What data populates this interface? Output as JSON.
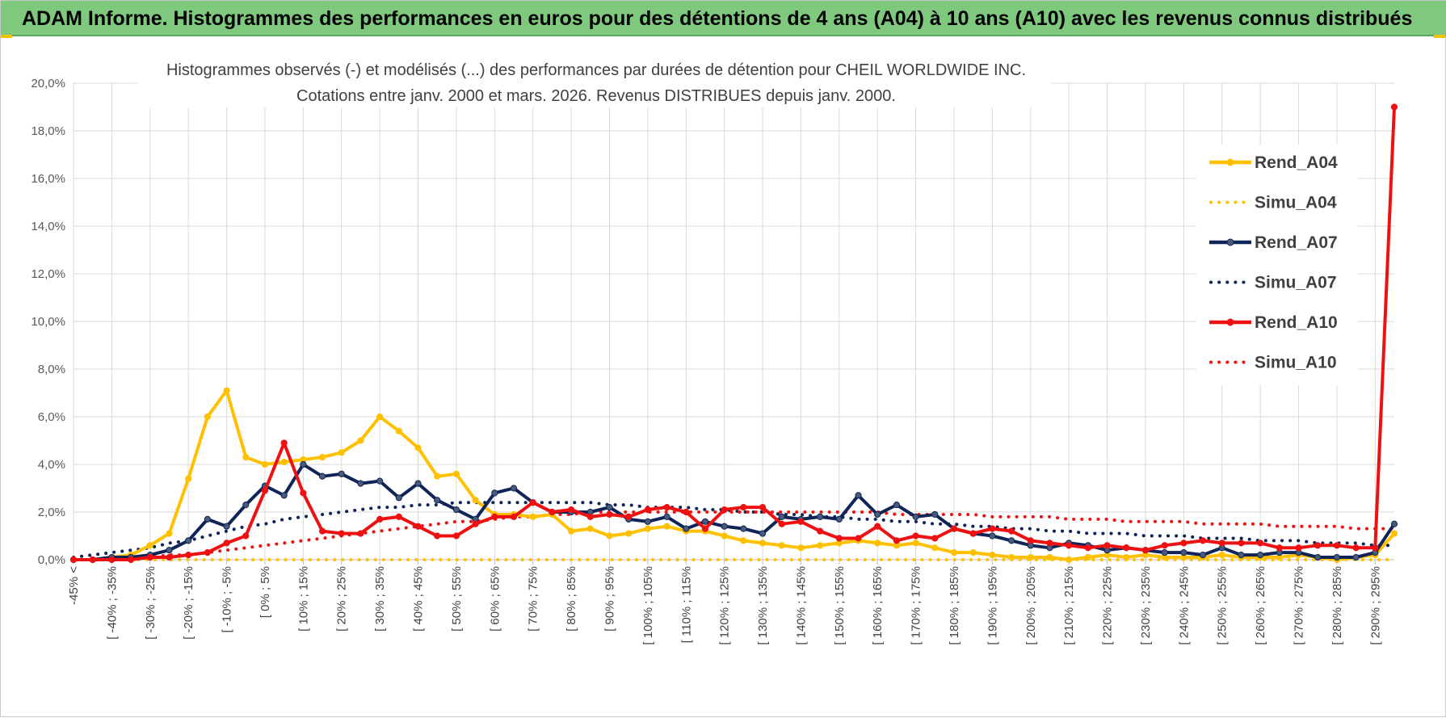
{
  "banner": {
    "title": "ADAM Informe. Histogrammes des performances en euros pour des détentions de 4 ans (A04) à 10 ans (A10) avec les revenus connus distribués"
  },
  "colors": {
    "banner_bg": "#7fc97f",
    "A04": "#ffc000",
    "A07": "#0f2557",
    "A10": "#ee1111",
    "grid": "#d9d9d9"
  },
  "chart_data": {
    "type": "line",
    "title": "Histogrammes observés (-) et modélisés (...) des performances par durées de détention pour CHEIL WORLDWIDE INC.",
    "subtitle": "Cotations entre janv. 2000 et mars. 2026.  Revenus DISTRIBUES depuis janv. 2000.",
    "ylim": [
      0,
      20
    ],
    "y_ticks": [
      "0,0%",
      "2,0%",
      "4,0%",
      "6,0%",
      "8,0%",
      "10,0%",
      "12,0%",
      "14,0%",
      "16,0%",
      "18,0%",
      "20,0%"
    ],
    "grid": true,
    "legend_position": "right",
    "x_tick_labels": [
      "-45% <",
      "[ -40% ; -35%",
      "[ -30% ; -25%",
      "[ -20% ; -15%",
      "[ -10% ; -5%",
      "[ 0% ; 5%",
      "[ 10% ; 15%",
      "[ 20% ; 25%",
      "[ 30% ; 35%",
      "[ 40% ; 45%",
      "[ 50% ; 55%",
      "[ 60% ; 65%",
      "[ 70% ; 75%",
      "[ 80% ; 85%",
      "[ 90% ; 95%",
      "[ 100% ; 105%",
      "[ 110% ; 115%",
      "[ 120% ; 125%",
      "[ 130% ; 135%",
      "[ 140% ; 145%",
      "[ 150% ; 155%",
      "[ 160% ; 165%",
      "[ 170% ; 175%",
      "[ 180% ; 185%",
      "[ 190% ; 195%",
      "[ 200% ; 205%",
      "[ 210% ; 215%",
      "[ 220% ; 225%",
      "[ 230% ; 235%",
      "[ 240% ; 245%",
      "[ 250% ; 255%",
      "[ 260% ; 265%",
      "[ 270% ; 275%",
      "[ 280% ; 285%",
      "[ 290% ; 295%"
    ],
    "n_points": 70,
    "series": [
      {
        "name": "Rend_A04",
        "style": "solid",
        "color": "#ffc000",
        "values": [
          0,
          0,
          0.1,
          0.2,
          0.6,
          1.1,
          3.4,
          6.0,
          7.1,
          4.3,
          4.0,
          4.1,
          4.2,
          4.3,
          4.5,
          5.0,
          6.0,
          5.4,
          4.7,
          3.5,
          3.6,
          2.5,
          1.9,
          1.9,
          1.8,
          1.9,
          1.2,
          1.3,
          1.0,
          1.1,
          1.3,
          1.4,
          1.2,
          1.2,
          1.0,
          0.8,
          0.7,
          0.6,
          0.5,
          0.6,
          0.7,
          0.8,
          0.7,
          0.6,
          0.7,
          0.5,
          0.3,
          0.3,
          0.2,
          0.1,
          0.1,
          0.1,
          0.0,
          0.1,
          0.2,
          0.1,
          0.2,
          0.1,
          0.1,
          0.1,
          0.2,
          0.1,
          0.1,
          0.1,
          0.2,
          0.1,
          0.0,
          0.1,
          0.2,
          1.1
        ]
      },
      {
        "name": "Simu_A04",
        "style": "dotted",
        "color": "#ffc000",
        "values": [
          0.0,
          0.0,
          0.0,
          0.0,
          0.0,
          0.0,
          0.0,
          0.0,
          0.0,
          0.0,
          0.0,
          0.0,
          0.0,
          0.0,
          0.0,
          0.0,
          0.0,
          0.0,
          0.0,
          0.0,
          0.0,
          0.0,
          0.0,
          0.0,
          0.0,
          0.0,
          0.0,
          0.0,
          0.0,
          0.0,
          0.0,
          0.0,
          0.0,
          0.0,
          0.0,
          0.0,
          0.0,
          0.0,
          0.0,
          0.0,
          0.0,
          0.0,
          0.0,
          0.0,
          0.0,
          0.0,
          0.0,
          0.0,
          0.0,
          0.0,
          0.0,
          0.0,
          0.0,
          0.0,
          0.0,
          0.0,
          0.0,
          0.0,
          0.0,
          0.0,
          0.0,
          0.0,
          0.0,
          0.0,
          0.0,
          0.0,
          0.0,
          0.0,
          0.0,
          0.0
        ]
      },
      {
        "name": "Rend_A07",
        "style": "solid",
        "color": "#0f2557",
        "values": [
          0,
          0,
          0.1,
          0.1,
          0.2,
          0.4,
          0.8,
          1.7,
          1.4,
          2.3,
          3.1,
          2.7,
          4.0,
          3.5,
          3.6,
          3.2,
          3.3,
          2.6,
          3.2,
          2.5,
          2.1,
          1.7,
          2.8,
          3.0,
          2.4,
          2.0,
          2.0,
          2.0,
          2.2,
          1.7,
          1.6,
          1.8,
          1.3,
          1.6,
          1.4,
          1.3,
          1.1,
          1.8,
          1.7,
          1.8,
          1.7,
          2.7,
          1.9,
          2.3,
          1.8,
          1.9,
          1.3,
          1.1,
          1.0,
          0.8,
          0.6,
          0.5,
          0.7,
          0.6,
          0.4,
          0.5,
          0.4,
          0.3,
          0.3,
          0.2,
          0.5,
          0.2,
          0.2,
          0.3,
          0.3,
          0.1,
          0.1,
          0.1,
          0.3,
          1.5
        ]
      },
      {
        "name": "Simu_A07",
        "style": "dotted",
        "color": "#0f2557",
        "values": [
          0.1,
          0.2,
          0.3,
          0.4,
          0.5,
          0.7,
          0.8,
          1.0,
          1.2,
          1.4,
          1.5,
          1.7,
          1.8,
          1.9,
          2.0,
          2.1,
          2.2,
          2.2,
          2.3,
          2.3,
          2.4,
          2.4,
          2.4,
          2.4,
          2.4,
          2.4,
          2.4,
          2.4,
          2.3,
          2.3,
          2.2,
          2.2,
          2.2,
          2.1,
          2.1,
          2.0,
          2.0,
          1.9,
          1.9,
          1.8,
          1.8,
          1.7,
          1.7,
          1.6,
          1.6,
          1.5,
          1.5,
          1.4,
          1.4,
          1.3,
          1.3,
          1.2,
          1.2,
          1.1,
          1.1,
          1.1,
          1.0,
          1.0,
          1.0,
          0.9,
          0.9,
          0.9,
          0.8,
          0.8,
          0.8,
          0.7,
          0.7,
          0.7,
          0.6,
          0.6
        ]
      },
      {
        "name": "Rend_A10",
        "style": "solid",
        "color": "#ee1111",
        "values": [
          0,
          0,
          0,
          0,
          0.1,
          0.1,
          0.2,
          0.3,
          0.7,
          1.0,
          2.9,
          4.9,
          2.8,
          1.2,
          1.1,
          1.1,
          1.7,
          1.8,
          1.4,
          1.0,
          1.0,
          1.5,
          1.8,
          1.8,
          2.4,
          2.0,
          2.1,
          1.8,
          1.9,
          1.8,
          2.1,
          2.2,
          2.0,
          1.3,
          2.1,
          2.2,
          2.2,
          1.5,
          1.6,
          1.2,
          0.9,
          0.9,
          1.4,
          0.8,
          1.0,
          0.9,
          1.3,
          1.1,
          1.3,
          1.2,
          0.8,
          0.7,
          0.6,
          0.5,
          0.6,
          0.5,
          0.4,
          0.6,
          0.7,
          0.8,
          0.7,
          0.7,
          0.7,
          0.5,
          0.5,
          0.6,
          0.6,
          0.5,
          0.5,
          19.0
        ]
      },
      {
        "name": "Simu_A10",
        "style": "dotted",
        "color": "#ee1111",
        "values": [
          0.0,
          0.0,
          0.1,
          0.1,
          0.1,
          0.2,
          0.2,
          0.3,
          0.4,
          0.5,
          0.6,
          0.7,
          0.8,
          0.9,
          1.0,
          1.1,
          1.2,
          1.3,
          1.4,
          1.5,
          1.6,
          1.6,
          1.7,
          1.8,
          1.8,
          1.9,
          1.9,
          2.0,
          2.0,
          2.0,
          2.0,
          2.0,
          2.0,
          2.0,
          2.0,
          2.0,
          2.0,
          2.0,
          2.0,
          2.0,
          2.0,
          2.0,
          2.0,
          1.9,
          1.9,
          1.9,
          1.9,
          1.9,
          1.8,
          1.8,
          1.8,
          1.8,
          1.7,
          1.7,
          1.7,
          1.6,
          1.6,
          1.6,
          1.6,
          1.5,
          1.5,
          1.5,
          1.5,
          1.4,
          1.4,
          1.4,
          1.4,
          1.3,
          1.3,
          1.3
        ]
      }
    ]
  }
}
